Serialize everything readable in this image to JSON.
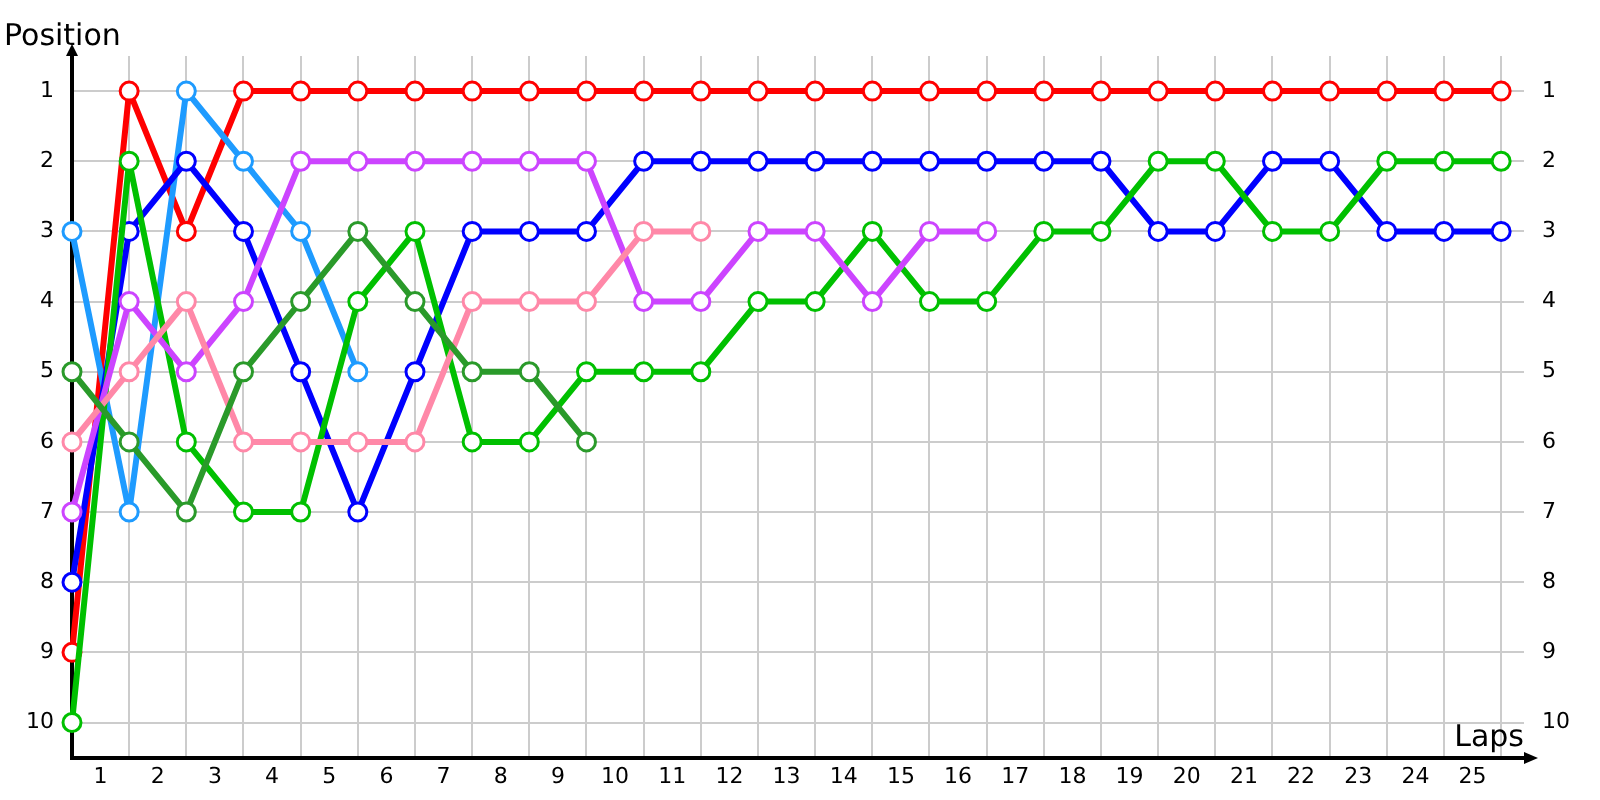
{
  "chart_data": {
    "type": "line",
    "xlabel": "Laps",
    "ylabel": "Position",
    "x": [
      0,
      1,
      2,
      3,
      4,
      5,
      6,
      7,
      8,
      9,
      10,
      11,
      12,
      13,
      14,
      15,
      16,
      17,
      18,
      19,
      20,
      21,
      22,
      23,
      24,
      25
    ],
    "series": [
      {
        "color": "#ff0000",
        "values": [
          9,
          1,
          3,
          1,
          1,
          1,
          1,
          1,
          1,
          1,
          1,
          1,
          1,
          1,
          1,
          1,
          1,
          1,
          1,
          1,
          1,
          1,
          1,
          1,
          1,
          1
        ]
      },
      {
        "color": "#1e9bff",
        "values": [
          3,
          7,
          1,
          2,
          3,
          5,
          null,
          null,
          null,
          null,
          null,
          null,
          null,
          null,
          null,
          null,
          null,
          null,
          null,
          null,
          null,
          null,
          null,
          null,
          null,
          null
        ]
      },
      {
        "color": "#0000ff",
        "values": [
          8,
          3,
          2,
          3,
          5,
          7,
          5,
          3,
          3,
          3,
          2,
          2,
          2,
          2,
          2,
          2,
          2,
          2,
          2,
          3,
          3,
          2,
          2,
          3,
          3,
          3
        ]
      },
      {
        "color": "#00c000",
        "values": [
          10,
          2,
          6,
          7,
          7,
          4,
          3,
          6,
          6,
          5,
          5,
          5,
          4,
          4,
          3,
          4,
          4,
          3,
          3,
          2,
          2,
          3,
          3,
          2,
          2,
          2
        ]
      },
      {
        "color": "#cc44ff",
        "values": [
          7,
          4,
          5,
          4,
          2,
          2,
          2,
          2,
          2,
          2,
          4,
          4,
          3,
          3,
          4,
          3,
          3,
          null,
          null,
          null,
          null,
          null,
          null,
          null,
          null,
          null
        ]
      },
      {
        "color": "#ff88a8",
        "values": [
          6,
          5,
          4,
          6,
          6,
          6,
          6,
          4,
          4,
          4,
          3,
          3,
          null,
          null,
          null,
          null,
          null,
          null,
          null,
          null,
          null,
          null,
          null,
          null,
          null,
          null
        ]
      },
      {
        "color": "#2a9a2a",
        "values": [
          5,
          6,
          7,
          5,
          4,
          3,
          4,
          5,
          5,
          6,
          null,
          null,
          null,
          null,
          null,
          null,
          null,
          null,
          null,
          null,
          null,
          null,
          null,
          null,
          null,
          null
        ]
      }
    ],
    "xlim": [
      0,
      25.4
    ],
    "xticks": [
      {
        "value": 0,
        "label": null
      },
      {
        "value": 0.5,
        "label": "1"
      },
      {
        "value": 1,
        "label": null
      },
      {
        "value": 1.5,
        "label": "2"
      },
      {
        "value": 2,
        "label": null
      },
      {
        "value": 2.5,
        "label": "3"
      },
      {
        "value": 3,
        "label": null
      },
      {
        "value": 3.5,
        "label": "4"
      },
      {
        "value": 4,
        "label": null
      },
      {
        "value": 4.5,
        "label": "5"
      },
      {
        "value": 5,
        "label": null
      },
      {
        "value": 5.5,
        "label": "6"
      },
      {
        "value": 6,
        "label": null
      },
      {
        "value": 6.5,
        "label": "7"
      },
      {
        "value": 7,
        "label": null
      },
      {
        "value": 7.5,
        "label": "8"
      },
      {
        "value": 8,
        "label": null
      },
      {
        "value": 8.5,
        "label": "9"
      },
      {
        "value": 9,
        "label": null
      },
      {
        "value": 9.5,
        "label": "10"
      },
      {
        "value": 10,
        "label": null
      },
      {
        "value": 10.5,
        "label": "11"
      },
      {
        "value": 11,
        "label": null
      },
      {
        "value": 11.5,
        "label": "12"
      },
      {
        "value": 12,
        "label": null
      },
      {
        "value": 12.5,
        "label": "13"
      },
      {
        "value": 13,
        "label": null
      },
      {
        "value": 13.5,
        "label": "14"
      },
      {
        "value": 14,
        "label": null
      },
      {
        "value": 14.5,
        "label": "15"
      },
      {
        "value": 15,
        "label": null
      },
      {
        "value": 15.5,
        "label": "16"
      },
      {
        "value": 16,
        "label": null
      },
      {
        "value": 16.5,
        "label": "17"
      },
      {
        "value": 17,
        "label": null
      },
      {
        "value": 17.5,
        "label": "18"
      },
      {
        "value": 18,
        "label": null
      },
      {
        "value": 18.5,
        "label": "19"
      },
      {
        "value": 19,
        "label": null
      },
      {
        "value": 19.5,
        "label": "20"
      },
      {
        "value": 20,
        "label": null
      },
      {
        "value": 20.5,
        "label": "21"
      },
      {
        "value": 21,
        "label": null
      },
      {
        "value": 21.5,
        "label": "22"
      },
      {
        "value": 22,
        "label": null
      },
      {
        "value": 22.5,
        "label": "23"
      },
      {
        "value": 23,
        "label": null
      },
      {
        "value": 23.5,
        "label": "24"
      },
      {
        "value": 24,
        "label": null
      },
      {
        "value": 24.5,
        "label": "25"
      },
      {
        "value": 25,
        "label": null
      }
    ],
    "ylim": [
      10.5,
      0.5
    ],
    "yticks": [
      1,
      2,
      3,
      4,
      5,
      6,
      7,
      8,
      9,
      10
    ],
    "y2lim": [
      10.5,
      0.5
    ],
    "y2ticks": [
      1,
      2,
      3,
      4,
      5,
      6,
      7,
      8,
      9,
      10
    ],
    "grid": true,
    "legend": false,
    "marker": "circle",
    "line_style": "solid"
  }
}
